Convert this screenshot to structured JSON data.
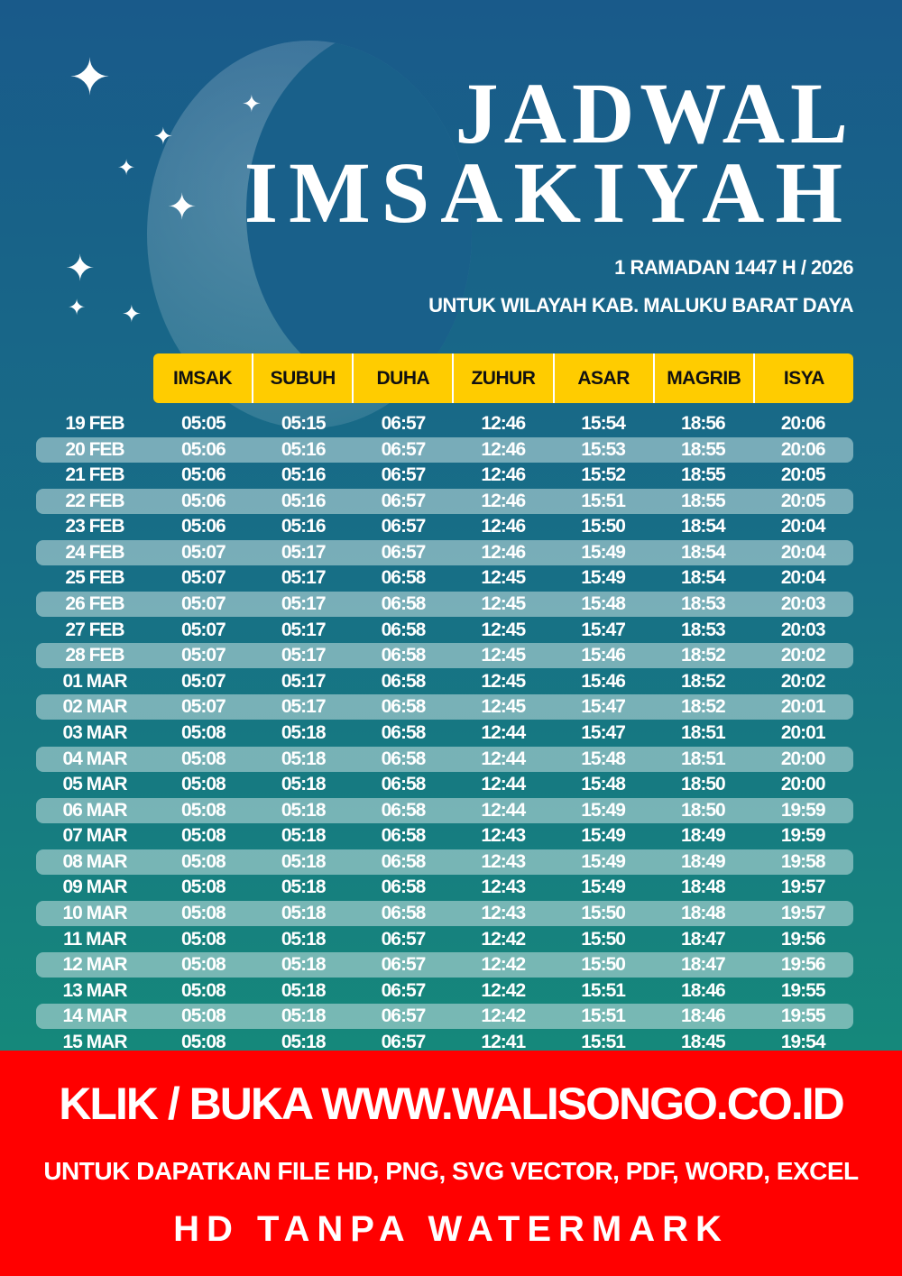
{
  "title": {
    "line1": "JADWAL",
    "line2": "IMSAKIYAH"
  },
  "subtitle": {
    "line1": "1 RAMADAN 1447 H / 2026",
    "line2": "UNTUK WILAYAH KAB. MALUKU BARAT DAYA"
  },
  "colors": {
    "header_bg": "#ffcc00",
    "banner_bg": "#ff0000",
    "bg_top": "#195a8a",
    "bg_bottom": "#158a7a"
  },
  "columns": [
    "IMSAK",
    "SUBUH",
    "DUHA",
    "ZUHUR",
    "ASAR",
    "MAGRIB",
    "ISYA"
  ],
  "rows": [
    [
      "19 FEB",
      "05:05",
      "05:15",
      "06:57",
      "12:46",
      "15:54",
      "18:56",
      "20:06"
    ],
    [
      "20 FEB",
      "05:06",
      "05:16",
      "06:57",
      "12:46",
      "15:53",
      "18:55",
      "20:06"
    ],
    [
      "21 FEB",
      "05:06",
      "05:16",
      "06:57",
      "12:46",
      "15:52",
      "18:55",
      "20:05"
    ],
    [
      "22 FEB",
      "05:06",
      "05:16",
      "06:57",
      "12:46",
      "15:51",
      "18:55",
      "20:05"
    ],
    [
      "23 FEB",
      "05:06",
      "05:16",
      "06:57",
      "12:46",
      "15:50",
      "18:54",
      "20:04"
    ],
    [
      "24 FEB",
      "05:07",
      "05:17",
      "06:57",
      "12:46",
      "15:49",
      "18:54",
      "20:04"
    ],
    [
      "25 FEB",
      "05:07",
      "05:17",
      "06:58",
      "12:45",
      "15:49",
      "18:54",
      "20:04"
    ],
    [
      "26 FEB",
      "05:07",
      "05:17",
      "06:58",
      "12:45",
      "15:48",
      "18:53",
      "20:03"
    ],
    [
      "27 FEB",
      "05:07",
      "05:17",
      "06:58",
      "12:45",
      "15:47",
      "18:53",
      "20:03"
    ],
    [
      "28 FEB",
      "05:07",
      "05:17",
      "06:58",
      "12:45",
      "15:46",
      "18:52",
      "20:02"
    ],
    [
      "01 MAR",
      "05:07",
      "05:17",
      "06:58",
      "12:45",
      "15:46",
      "18:52",
      "20:02"
    ],
    [
      "02 MAR",
      "05:07",
      "05:17",
      "06:58",
      "12:45",
      "15:47",
      "18:52",
      "20:01"
    ],
    [
      "03 MAR",
      "05:08",
      "05:18",
      "06:58",
      "12:44",
      "15:47",
      "18:51",
      "20:01"
    ],
    [
      "04 MAR",
      "05:08",
      "05:18",
      "06:58",
      "12:44",
      "15:48",
      "18:51",
      "20:00"
    ],
    [
      "05 MAR",
      "05:08",
      "05:18",
      "06:58",
      "12:44",
      "15:48",
      "18:50",
      "20:00"
    ],
    [
      "06 MAR",
      "05:08",
      "05:18",
      "06:58",
      "12:44",
      "15:49",
      "18:50",
      "19:59"
    ],
    [
      "07 MAR",
      "05:08",
      "05:18",
      "06:58",
      "12:43",
      "15:49",
      "18:49",
      "19:59"
    ],
    [
      "08 MAR",
      "05:08",
      "05:18",
      "06:58",
      "12:43",
      "15:49",
      "18:49",
      "19:58"
    ],
    [
      "09 MAR",
      "05:08",
      "05:18",
      "06:58",
      "12:43",
      "15:49",
      "18:48",
      "19:57"
    ],
    [
      "10 MAR",
      "05:08",
      "05:18",
      "06:58",
      "12:43",
      "15:50",
      "18:48",
      "19:57"
    ],
    [
      "11 MAR",
      "05:08",
      "05:18",
      "06:57",
      "12:42",
      "15:50",
      "18:47",
      "19:56"
    ],
    [
      "12 MAR",
      "05:08",
      "05:18",
      "06:57",
      "12:42",
      "15:50",
      "18:47",
      "19:56"
    ],
    [
      "13 MAR",
      "05:08",
      "05:18",
      "06:57",
      "12:42",
      "15:51",
      "18:46",
      "19:55"
    ],
    [
      "14 MAR",
      "05:08",
      "05:18",
      "06:57",
      "12:42",
      "15:51",
      "18:46",
      "19:55"
    ],
    [
      "15 MAR",
      "05:08",
      "05:18",
      "06:57",
      "12:41",
      "15:51",
      "18:45",
      "19:54"
    ]
  ],
  "banner": {
    "line1": "KLIK / BUKA WWW.WALISONGO.CO.ID",
    "line2": "UNTUK DAPATKAN FILE HD, PNG, SVG VECTOR, PDF, WORD, EXCEL",
    "line3": "HD TANPA WATERMARK"
  }
}
